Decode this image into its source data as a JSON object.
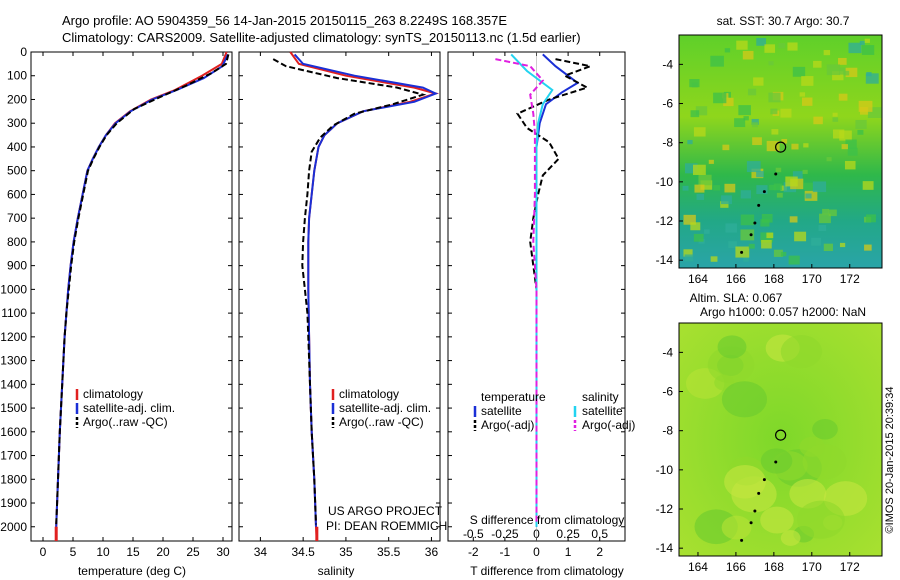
{
  "header": {
    "line1": "Argo profile: AO 5904359_56 14-Jan-2015 20150115_263 8.2249S 168.357E",
    "line2": "Climatology: CARS2009. Satellite-adjusted climatology: synTS_20150113.nc (1.5d earlier)"
  },
  "colors": {
    "climatology": "#e02020",
    "satellite": "#1a2fd6",
    "argo": "#000000",
    "sat_salinity": "#22d3f0",
    "argo_salinity": "#e020e0"
  },
  "depth_ticks": [
    "0",
    "100",
    "200",
    "300",
    "400",
    "500",
    "600",
    "700",
    "800",
    "900",
    "1000",
    "1100",
    "1200",
    "1300",
    "1400",
    "1500",
    "1600",
    "1700",
    "1800",
    "1900",
    "2000"
  ],
  "chart_data": [
    {
      "type": "line",
      "xlabel": "temperature (deg C)",
      "ylim": [
        2060,
        0
      ],
      "xlim": [
        -2,
        31.5
      ],
      "x_ticks": [
        "0",
        "5",
        "10",
        "15",
        "20",
        "25",
        "30"
      ],
      "x_tick_values": [
        0,
        5,
        10,
        15,
        20,
        25,
        30
      ],
      "legend": [
        "climatology",
        "satellite-adj. clim.",
        "Argo(..raw -QC)"
      ],
      "series": [
        {
          "name": "climatology",
          "color": "#e02020",
          "points": [
            [
              30.6,
              0
            ],
            [
              29.8,
              50
            ],
            [
              26.5,
              100
            ],
            [
              22,
              160
            ],
            [
              18,
              200
            ],
            [
              14.5,
              250
            ],
            [
              12,
              300
            ],
            [
              10.5,
              350
            ],
            [
              9.3,
              400
            ],
            [
              8.3,
              450
            ],
            [
              7.4,
              500
            ],
            [
              6.6,
              600
            ],
            [
              5.8,
              700
            ],
            [
              5.1,
              800
            ],
            [
              4.6,
              900
            ],
            [
              4.2,
              1000
            ],
            [
              3.9,
              1100
            ],
            [
              3.6,
              1200
            ],
            [
              3.4,
              1300
            ],
            [
              3.2,
              1400
            ],
            [
              3.0,
              1500
            ],
            [
              2.8,
              1600
            ],
            [
              2.65,
              1700
            ],
            [
              2.5,
              1800
            ],
            [
              2.35,
              1900
            ],
            [
              2.2,
              2000
            ],
            [
              2.2,
              2060
            ]
          ]
        },
        {
          "name": "satellite-adj. clim.",
          "color": "#1a2fd6",
          "points": [
            [
              30.8,
              10
            ],
            [
              29.9,
              60
            ],
            [
              26.8,
              110
            ],
            [
              22.3,
              160
            ],
            [
              18.2,
              200
            ],
            [
              14.6,
              250
            ],
            [
              12.1,
              300
            ],
            [
              10.5,
              350
            ],
            [
              9.3,
              400
            ],
            [
              8.3,
              450
            ],
            [
              7.4,
              500
            ],
            [
              6.6,
              600
            ],
            [
              5.8,
              700
            ],
            [
              5.1,
              800
            ],
            [
              4.6,
              900
            ],
            [
              4.2,
              1000
            ],
            [
              3.9,
              1100
            ],
            [
              3.6,
              1200
            ],
            [
              3.4,
              1300
            ],
            [
              3.2,
              1400
            ],
            [
              3.0,
              1500
            ],
            [
              2.8,
              1600
            ],
            [
              2.65,
              1700
            ],
            [
              2.5,
              1800
            ],
            [
              2.35,
              1900
            ],
            [
              2.2,
              2000
            ]
          ]
        },
        {
          "name": "Argo(..raw -QC)",
          "color": "#000000",
          "dashed": true,
          "points": [
            [
              30.9,
              10
            ],
            [
              30.5,
              50
            ],
            [
              28,
              90
            ],
            [
              24,
              140
            ],
            [
              19.5,
              190
            ],
            [
              15.2,
              240
            ],
            [
              12.3,
              300
            ],
            [
              10.6,
              350
            ],
            [
              9.4,
              400
            ],
            [
              8.4,
              450
            ],
            [
              7.5,
              500
            ],
            [
              6.7,
              600
            ],
            [
              5.9,
              700
            ],
            [
              5.2,
              800
            ],
            [
              4.7,
              900
            ],
            [
              4.3,
              1000
            ],
            [
              3.9,
              1100
            ],
            [
              3.6,
              1200
            ],
            [
              3.4,
              1300
            ],
            [
              3.2,
              1400
            ],
            [
              3.0,
              1500
            ],
            [
              2.8,
              1600
            ],
            [
              2.65,
              1700
            ],
            [
              2.5,
              1800
            ],
            [
              2.35,
              1900
            ],
            [
              2.2,
              1990
            ]
          ]
        }
      ]
    },
    {
      "type": "line",
      "xlabel": "salinity",
      "ylim": [
        2060,
        0
      ],
      "xlim": [
        33.75,
        36.1
      ],
      "x_ticks": [
        "34",
        "34.5",
        "35",
        "35.5",
        "36"
      ],
      "x_tick_values": [
        34,
        34.5,
        35,
        35.5,
        36
      ],
      "legend": [
        "climatology",
        "satellite-adj. clim.",
        "Argo(..raw -QC)"
      ],
      "annotation": [
        "US ARGO PROJECT",
        "PI: DEAN ROEMMICH"
      ],
      "series": [
        {
          "name": "climatology",
          "color": "#e02020",
          "points": [
            [
              34.35,
              0
            ],
            [
              34.45,
              50
            ],
            [
              35.0,
              100
            ],
            [
              35.8,
              150
            ],
            [
              36.05,
              175
            ],
            [
              35.75,
              210
            ],
            [
              35.2,
              250
            ],
            [
              34.9,
              300
            ],
            [
              34.75,
              350
            ],
            [
              34.68,
              400
            ],
            [
              34.63,
              500
            ],
            [
              34.6,
              600
            ],
            [
              34.57,
              700
            ],
            [
              34.56,
              800
            ],
            [
              34.56,
              900
            ],
            [
              34.56,
              1000
            ],
            [
              34.57,
              1200
            ],
            [
              34.58,
              1400
            ],
            [
              34.6,
              1600
            ],
            [
              34.63,
              1800
            ],
            [
              34.65,
              2000
            ],
            [
              34.66,
              2060
            ]
          ]
        },
        {
          "name": "satellite-adj. clim.",
          "color": "#1a2fd6",
          "points": [
            [
              34.4,
              10
            ],
            [
              34.5,
              50
            ],
            [
              35.1,
              100
            ],
            [
              35.9,
              150
            ],
            [
              36.05,
              175
            ],
            [
              35.8,
              210
            ],
            [
              35.2,
              250
            ],
            [
              34.9,
              300
            ],
            [
              34.75,
              350
            ],
            [
              34.68,
              400
            ],
            [
              34.63,
              500
            ],
            [
              34.6,
              600
            ],
            [
              34.57,
              700
            ],
            [
              34.56,
              800
            ],
            [
              34.56,
              900
            ],
            [
              34.56,
              1000
            ],
            [
              34.57,
              1200
            ],
            [
              34.58,
              1400
            ],
            [
              34.6,
              1600
            ],
            [
              34.63,
              1800
            ],
            [
              34.65,
              2000
            ]
          ]
        },
        {
          "name": "Argo(..raw -QC)",
          "color": "#000000",
          "dashed": true,
          "points": [
            [
              34.15,
              30
            ],
            [
              34.3,
              60
            ],
            [
              34.9,
              110
            ],
            [
              35.6,
              150
            ],
            [
              35.9,
              180
            ],
            [
              35.55,
              220
            ],
            [
              35.1,
              260
            ],
            [
              34.85,
              310
            ],
            [
              34.7,
              360
            ],
            [
              34.6,
              420
            ],
            [
              34.57,
              500
            ],
            [
              34.55,
              600
            ],
            [
              34.52,
              700
            ],
            [
              34.5,
              800
            ],
            [
              34.49,
              900
            ],
            [
              34.52,
              1000
            ],
            [
              34.55,
              1100
            ],
            [
              34.56,
              1200
            ],
            [
              34.58,
              1400
            ],
            [
              34.6,
              1600
            ],
            [
              34.63,
              1800
            ],
            [
              34.65,
              1990
            ]
          ]
        }
      ]
    },
    {
      "type": "line",
      "xlabel": "T difference from climatology",
      "x2label": "S difference from climatology",
      "ylim": [
        2060,
        0
      ],
      "xlim": [
        -2.8,
        2.8
      ],
      "x_ticks": [
        "-2",
        "-1",
        "0",
        "1",
        "2"
      ],
      "x_tick_values": [
        -2,
        -1,
        0,
        1,
        2
      ],
      "x2_ticks": [
        "-0.5",
        "-0.25",
        "0",
        "0.25",
        "0.5"
      ],
      "x2_tick_values": [
        -0.5,
        -0.25,
        0,
        0.25,
        0.5
      ],
      "legend_temperature": [
        "temperature",
        "satellite",
        "Argo(-adj)"
      ],
      "legend_salinity": [
        "salinity",
        "satellite",
        "Argo(-adj)"
      ],
      "series": [
        {
          "name": "satellite",
          "color": "#1a2fd6",
          "points": [
            [
              0.2,
              10
            ],
            [
              0.6,
              60
            ],
            [
              1.3,
              130
            ],
            [
              0.8,
              170
            ],
            [
              0.3,
              220
            ],
            [
              0.1,
              300
            ],
            [
              0,
              400
            ],
            [
              0,
              2000
            ]
          ]
        },
        {
          "name": "Argo(-adj)",
          "color": "#000000",
          "dashed": true,
          "points": [
            [
              0.6,
              30
            ],
            [
              1.7,
              60
            ],
            [
              0.9,
              100
            ],
            [
              1.6,
              150
            ],
            [
              0.4,
              200
            ],
            [
              -0.6,
              260
            ],
            [
              -0.3,
              320
            ],
            [
              0.4,
              380
            ],
            [
              0.7,
              450
            ],
            [
              0.2,
              520
            ],
            [
              0.05,
              600
            ],
            [
              -0.1,
              700
            ],
            [
              -0.2,
              800
            ],
            [
              -0.1,
              900
            ],
            [
              0,
              1000
            ],
            [
              0,
              1990
            ]
          ]
        },
        {
          "name": "satellite",
          "color": "#22d3f0",
          "points": [
            [
              -0.8,
              10
            ],
            [
              -0.3,
              80
            ],
            [
              0.5,
              160
            ],
            [
              0.2,
              220
            ],
            [
              0.05,
              300
            ],
            [
              0,
              400
            ],
            [
              0,
              2000
            ]
          ]
        },
        {
          "name": "Argo(-adj)",
          "color": "#e020e0",
          "dashed": true,
          "points": [
            [
              -1.3,
              30
            ],
            [
              -0.2,
              60
            ],
            [
              0.2,
              120
            ],
            [
              -0.2,
              180
            ],
            [
              -0.1,
              260
            ],
            [
              -0.05,
              340
            ],
            [
              -0.05,
              600
            ],
            [
              -0.1,
              800
            ],
            [
              0,
              1000
            ],
            [
              0,
              1990
            ]
          ]
        }
      ]
    },
    {
      "type": "heatmap",
      "title": "sat. SST: 30.7  Argo: 30.7",
      "x_ticks": [
        "164",
        "166",
        "168",
        "170",
        "172"
      ],
      "y_ticks": [
        "-4",
        "-6",
        "-8",
        "-10",
        "-12",
        "-14"
      ],
      "xlim": [
        163,
        173.7
      ],
      "ylim": [
        -14.4,
        -2.5
      ],
      "marker": [
        168.357,
        -8.2249
      ]
    },
    {
      "type": "heatmap",
      "title": "Altim. SLA: 0.067",
      "subtitle": "Argo h1000: 0.057 h2000: NaN",
      "x_ticks": [
        "164",
        "166",
        "168",
        "170",
        "172"
      ],
      "y_ticks": [
        "-4",
        "-6",
        "-8",
        "-10",
        "-12",
        "-14"
      ],
      "xlim": [
        163,
        173.7
      ],
      "ylim": [
        -14.4,
        -2.5
      ],
      "marker": [
        168.357,
        -8.2249
      ]
    }
  ],
  "credit": "©IMOS 20-Jan-2015 20:39:34"
}
